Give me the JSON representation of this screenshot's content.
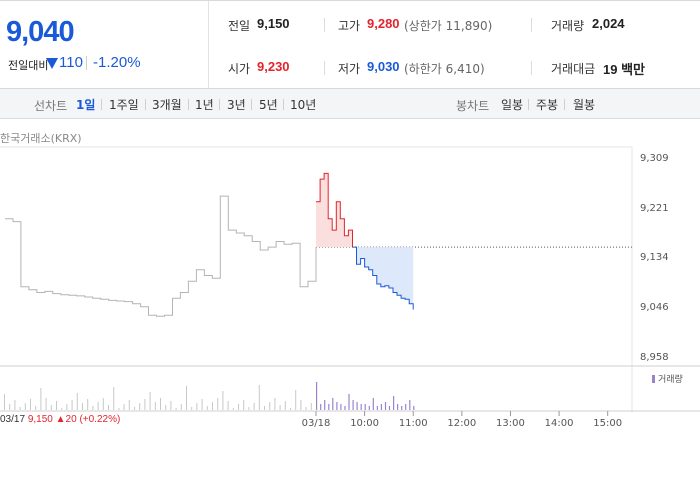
{
  "price": {
    "current": "9,040",
    "change_label": "전일대비",
    "change_amount": "110",
    "change_rate": "-1.20%"
  },
  "stats": {
    "prev_label": "전일",
    "prev_value": "9,150",
    "high_label": "고가",
    "high_value": "9,280",
    "upper_limit": "(상한가 11,890)",
    "volume_label": "거래량",
    "volume_value": "2,024",
    "open_label": "시가",
    "open_value": "9,230",
    "low_label": "저가",
    "low_value": "9,030",
    "lower_limit": "(하한가 6,410)",
    "amount_label": "거래대금",
    "amount_value": "19 백만"
  },
  "periods": {
    "line_title": "선차트",
    "line_items": [
      "1일",
      "1주일",
      "3개월",
      "1년",
      "3년",
      "5년",
      "10년"
    ],
    "candle_title": "봉차트",
    "candle_items": [
      "일봉",
      "주봉",
      "월봉"
    ]
  },
  "exchange_label": "한국거래소(KRX)",
  "volume_legend": "거래량",
  "footer": {
    "date": "03/17",
    "price": "9,150",
    "change": "▲20",
    "rate": "(+0.22%)"
  },
  "colors": {
    "up": "#e3242b",
    "down": "#1a5ad8",
    "prev_day": "#b4b4b4"
  },
  "chart_data": {
    "type": "line",
    "y_ticks": [
      "9,309",
      "9,221",
      "9,134",
      "9,046",
      "8,958"
    ],
    "ylim": [
      8958,
      9309
    ],
    "x_ticks": [
      "03/18",
      "10:00",
      "11:00",
      "12:00",
      "13:00",
      "14:00",
      "15:00"
    ],
    "reference_price": 9150,
    "series": [
      {
        "x": [
          "03/17 09:00",
          "03/17 09:10",
          "03/17 09:20",
          "03/17 09:30",
          "03/17 09:40",
          "03/17 09:50",
          "03/17 10:00",
          "03/17 10:10",
          "03/17 10:20",
          "03/17 10:30",
          "03/17 10:40",
          "03/17 10:50",
          "03/17 11:00",
          "03/17 11:10",
          "03/17 11:20",
          "03/17 11:30",
          "03/17 11:40",
          "03/17 11:50",
          "03/17 12:00",
          "03/17 12:10",
          "03/17 12:20",
          "03/17 12:30",
          "03/17 12:40",
          "03/17 12:50",
          "03/17 13:00",
          "03/17 13:10",
          "03/17 13:20",
          "03/17 13:30",
          "03/17 13:40",
          "03/17 13:50",
          "03/17 14:00",
          "03/17 14:10",
          "03/17 14:20",
          "03/17 14:30",
          "03/17 14:40",
          "03/17 14:50",
          "03/17 15:00",
          "03/17 15:10",
          "03/17 15:20",
          "03/17 15:30"
        ],
        "values": [
          9200,
          9195,
          9080,
          9075,
          9070,
          9072,
          9068,
          9066,
          9065,
          9064,
          9062,
          9060,
          9058,
          9056,
          9055,
          9054,
          9050,
          9045,
          9030,
          9028,
          9030,
          9060,
          9070,
          9090,
          9110,
          9100,
          9095,
          9240,
          9180,
          9175,
          9170,
          9160,
          9145,
          9150,
          9160,
          9155,
          9157,
          9080,
          9090,
          9150
        ]
      },
      {
        "x": [
          "09:00",
          "09:05",
          "09:10",
          "09:15",
          "09:20",
          "09:25",
          "09:30",
          "09:35",
          "09:40",
          "09:45",
          "09:50",
          "09:55",
          "10:00",
          "10:05",
          "10:10",
          "10:15",
          "10:20",
          "10:25",
          "10:30",
          "10:35",
          "10:40",
          "10:45",
          "10:50",
          "10:55",
          "11:00"
        ],
        "values": [
          9230,
          9270,
          9280,
          9200,
          9180,
          9230,
          9200,
          9170,
          9180,
          9150,
          9120,
          9130,
          9115,
          9110,
          9100,
          9085,
          9080,
          9082,
          9078,
          9070,
          9065,
          9060,
          9058,
          9050,
          9040
        ]
      }
    ],
    "volume": [
      14,
      3,
      5,
      3,
      6,
      4,
      3,
      2,
      8,
      5,
      4,
      3,
      3,
      2,
      6,
      2,
      3,
      4,
      2,
      7,
      3,
      2,
      3,
      5,
      2
    ]
  }
}
